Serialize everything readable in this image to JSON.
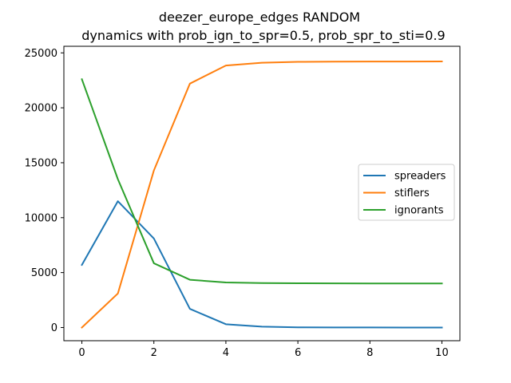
{
  "chart_data": {
    "type": "line",
    "title": "deezer_europe_edges RANDOM\ndynamics with prob_ign_to_spr=0.5, prob_spr_to_sti=0.9",
    "title_lines": [
      "deezer_europe_edges RANDOM",
      "dynamics with prob_ign_to_spr=0.5, prob_spr_to_sti=0.9"
    ],
    "xlabel": "",
    "ylabel": "",
    "x": [
      0,
      1,
      2,
      3,
      4,
      5,
      6,
      7,
      8,
      9,
      10
    ],
    "xlim": [
      -0.5,
      10.5
    ],
    "ylim": [
      -1200,
      25600
    ],
    "xticks": [
      0,
      2,
      4,
      6,
      8,
      10
    ],
    "yticks": [
      0,
      5000,
      10000,
      15000,
      20000,
      25000
    ],
    "grid": false,
    "legend_position": "center-right",
    "series": [
      {
        "name": "spreaders",
        "color": "#1f77b4",
        "values": [
          5700,
          11500,
          8100,
          1700,
          300,
          80,
          20,
          10,
          5,
          3,
          2
        ]
      },
      {
        "name": "stiflers",
        "color": "#ff7f0e",
        "values": [
          0,
          3100,
          14300,
          22200,
          23850,
          24100,
          24180,
          24200,
          24210,
          24215,
          24220
        ]
      },
      {
        "name": "ignorants",
        "color": "#2ca02c",
        "values": [
          22600,
          13500,
          5850,
          4350,
          4100,
          4050,
          4030,
          4020,
          4010,
          4010,
          4010
        ]
      }
    ]
  }
}
